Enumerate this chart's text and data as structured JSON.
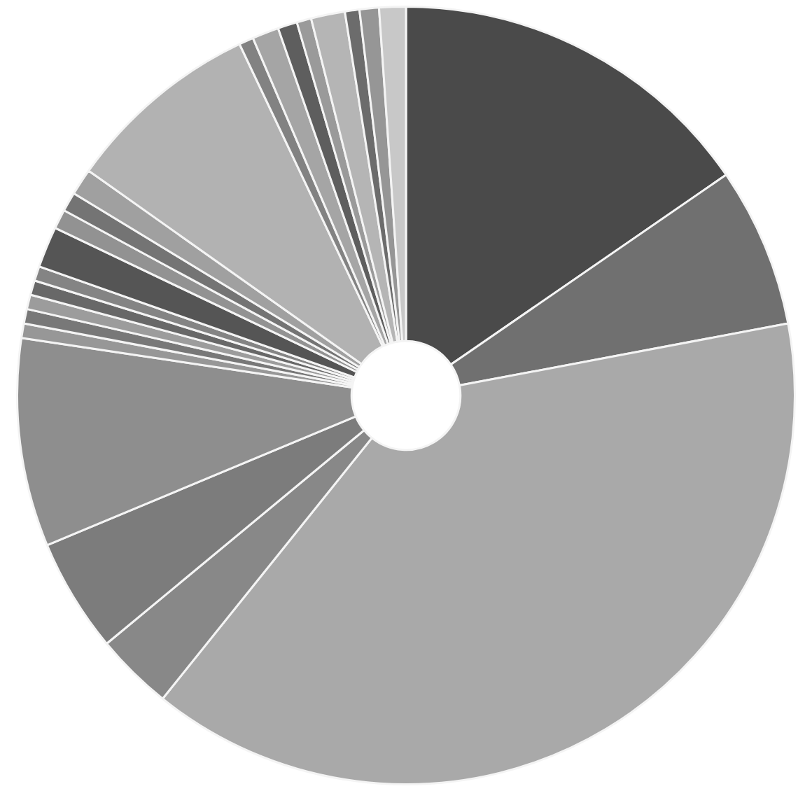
{
  "chart_data": {
    "type": "donut",
    "categories": [
      null,
      null,
      null,
      null,
      null,
      null,
      null,
      null,
      null,
      null,
      null,
      null,
      null,
      null,
      null,
      null,
      null,
      null,
      null,
      null,
      null,
      null,
      null,
      null
    ],
    "values": [
      15.3,
      6.6,
      38.5,
      3.2,
      4.7,
      8.6,
      0.6,
      0.6,
      0.6,
      0.6,
      0.6,
      1.7,
      0.8,
      0.8,
      1.1,
      8.1,
      0.6,
      1.1,
      0.8,
      0.6,
      1.4,
      0.6,
      0.8,
      1.1
    ],
    "colors": [
      "#4a4a4a",
      "#707070",
      "#a9a9a9",
      "#888888",
      "#7c7c7c",
      "#8e8e8e",
      "#979797",
      "#787878",
      "#9c9c9c",
      "#686868",
      "#848484",
      "#555555",
      "#929292",
      "#747474",
      "#a0a0a0",
      "#b2b2b2",
      "#828282",
      "#a5a5a5",
      "#5e5e5e",
      "#9a9a9a",
      "#b5b5b5",
      "#6c6c6c",
      "#969696",
      "#c8c8c8"
    ]
  }
}
